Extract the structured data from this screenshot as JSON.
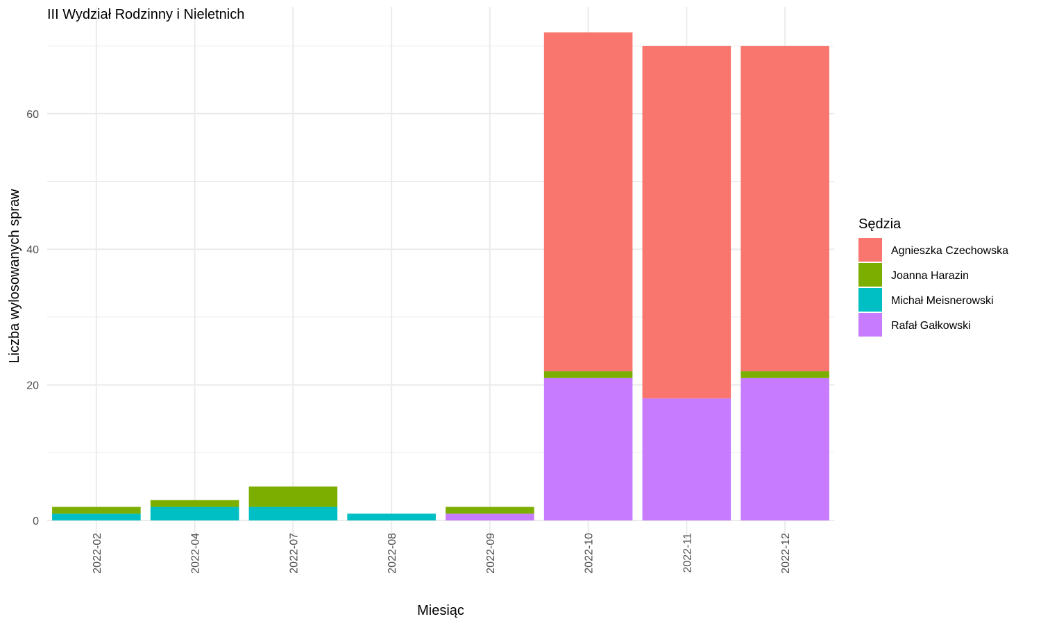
{
  "chart_data": {
    "type": "bar",
    "stacked": true,
    "title": "III Wydział Rodzinny i Nieletnich",
    "xlabel": "Miesiąc",
    "ylabel": "Liczba wylosowanych spraw",
    "ylim": [
      0,
      74
    ],
    "yticks": [
      0,
      20,
      40,
      60
    ],
    "grid": true,
    "legend": {
      "title": "Sędzia",
      "placement": "right"
    },
    "categories": [
      "2022-02",
      "2022-04",
      "2022-07",
      "2022-08",
      "2022-09",
      "2022-10",
      "2022-11",
      "2022-12"
    ],
    "series": [
      {
        "name": "Agnieszka Czechowska",
        "color": "#F8766D",
        "values": [
          0,
          0,
          0,
          0,
          0,
          50,
          52,
          48
        ]
      },
      {
        "name": "Joanna Harazin",
        "color": "#7CAE00",
        "values": [
          1,
          1,
          3,
          0,
          1,
          1,
          0,
          1
        ]
      },
      {
        "name": "Michał Meisnerowski",
        "color": "#00BFC4",
        "values": [
          1,
          2,
          2,
          1,
          0,
          0,
          0,
          0
        ]
      },
      {
        "name": "Rafał Gałkowski",
        "color": "#C77CFF",
        "values": [
          0,
          0,
          0,
          0,
          1,
          21,
          18,
          21
        ]
      }
    ]
  }
}
